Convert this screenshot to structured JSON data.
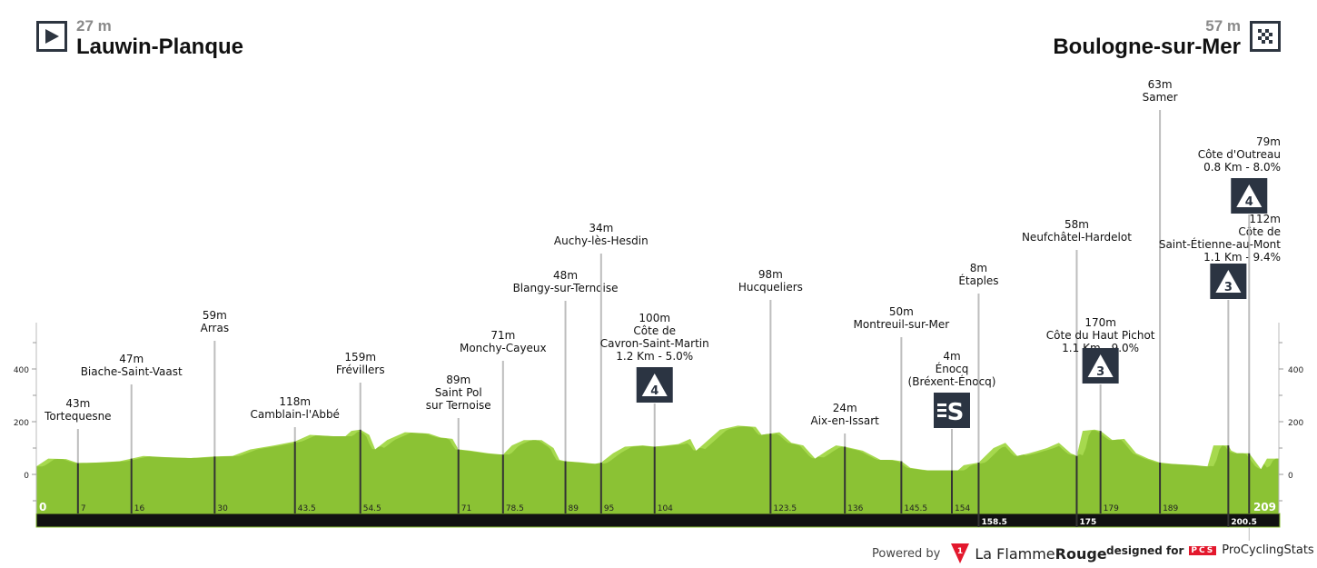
{
  "start": {
    "altitude": "27 m",
    "name": "Lauwin-Planque",
    "icon": "play-icon"
  },
  "finish": {
    "altitude": "57 m",
    "name": "Boulogne-sur-Mer",
    "icon": "checkered-flag-icon"
  },
  "chart_data": {
    "type": "area",
    "xlim": [
      0,
      209
    ],
    "ylim": [
      -150,
      600
    ],
    "y_ticks": [
      "400",
      "200",
      "0"
    ],
    "y_tick_values": [
      400,
      200,
      0
    ],
    "colors": {
      "profile": "#8bc234",
      "profile_light": "#a6d94e",
      "bar": "#111111"
    },
    "profile": [
      [
        0,
        30
      ],
      [
        2,
        60
      ],
      [
        5,
        58
      ],
      [
        7,
        43
      ],
      [
        10,
        45
      ],
      [
        14,
        50
      ],
      [
        16,
        60
      ],
      [
        18,
        70
      ],
      [
        22,
        65
      ],
      [
        26,
        62
      ],
      [
        30,
        68
      ],
      [
        33,
        70
      ],
      [
        36,
        95
      ],
      [
        40,
        110
      ],
      [
        43.5,
        125
      ],
      [
        46,
        150
      ],
      [
        50,
        145
      ],
      [
        52,
        145
      ],
      [
        53,
        165
      ],
      [
        54.5,
        170
      ],
      [
        56,
        150
      ],
      [
        57,
        95
      ],
      [
        59,
        130
      ],
      [
        62,
        160
      ],
      [
        66,
        155
      ],
      [
        68,
        140
      ],
      [
        70,
        135
      ],
      [
        71,
        95
      ],
      [
        73,
        90
      ],
      [
        76,
        80
      ],
      [
        78.5,
        75
      ],
      [
        80,
        110
      ],
      [
        82,
        130
      ],
      [
        85,
        130
      ],
      [
        87,
        100
      ],
      [
        88,
        55
      ],
      [
        89,
        50
      ],
      [
        92,
        45
      ],
      [
        94,
        40
      ],
      [
        95,
        45
      ],
      [
        97,
        80
      ],
      [
        99,
        105
      ],
      [
        102,
        110
      ],
      [
        104,
        105
      ],
      [
        106,
        110
      ],
      [
        108,
        115
      ],
      [
        110,
        135
      ],
      [
        111,
        90
      ],
      [
        113,
        130
      ],
      [
        115,
        170
      ],
      [
        118,
        185
      ],
      [
        121,
        180
      ],
      [
        122,
        150
      ],
      [
        123.5,
        155
      ],
      [
        125,
        160
      ],
      [
        127,
        120
      ],
      [
        129,
        110
      ],
      [
        131,
        60
      ],
      [
        133,
        90
      ],
      [
        134.5,
        110
      ],
      [
        136,
        105
      ],
      [
        139,
        90
      ],
      [
        142,
        55
      ],
      [
        144,
        55
      ],
      [
        145.5,
        50
      ],
      [
        147,
        25
      ],
      [
        150,
        15
      ],
      [
        154,
        15
      ],
      [
        155,
        15
      ],
      [
        156,
        35
      ],
      [
        158.5,
        45
      ],
      [
        161,
        100
      ],
      [
        163,
        120
      ],
      [
        165,
        70
      ],
      [
        167,
        80
      ],
      [
        170,
        100
      ],
      [
        172,
        120
      ],
      [
        174,
        80
      ],
      [
        175,
        70
      ],
      [
        176,
        165
      ],
      [
        178,
        170
      ],
      [
        179,
        165
      ],
      [
        181,
        130
      ],
      [
        183,
        135
      ],
      [
        185,
        80
      ],
      [
        187,
        60
      ],
      [
        189,
        45
      ],
      [
        191,
        40
      ],
      [
        195,
        35
      ],
      [
        197,
        30
      ],
      [
        198,
        110
      ],
      [
        200.5,
        110
      ],
      [
        201,
        90
      ],
      [
        202,
        80
      ],
      [
        204,
        80
      ],
      [
        205,
        50
      ],
      [
        206,
        20
      ],
      [
        207,
        60
      ],
      [
        209,
        60
      ]
    ],
    "km_start_label": "0",
    "km_end_label": "209",
    "waypoints": [
      {
        "km": 7,
        "tick": "7",
        "lines": [
          "43m",
          "Tortequesne"
        ]
      },
      {
        "km": 16,
        "tick": "16",
        "lines": [
          "47m",
          "Biache-Saint-Vaast"
        ]
      },
      {
        "km": 30,
        "tick": "30",
        "lines": [
          "59m",
          "Arras"
        ]
      },
      {
        "km": 43.5,
        "tick": "43.5",
        "lines": [
          "118m",
          "Camblain-l'Abbé"
        ]
      },
      {
        "km": 54.5,
        "tick": "54.5",
        "lines": [
          "159m",
          "Frévillers"
        ]
      },
      {
        "km": 71,
        "tick": "71",
        "lines": [
          "89m",
          "Saint Pol",
          "sur Ternoise"
        ]
      },
      {
        "km": 78.5,
        "tick": "78.5",
        "lines": [
          "71m",
          "Monchy-Cayeux"
        ]
      },
      {
        "km": 89,
        "tick": "89",
        "lines": [
          "48m",
          "Blangy-sur-Ternoise"
        ]
      },
      {
        "km": 95,
        "tick": "95",
        "lines": [
          "34m",
          "Auchy-lès-Hesdin"
        ]
      },
      {
        "km": 104,
        "tick": "104",
        "lines": [
          "100m",
          "Côte de",
          "Cavron-Saint-Martin",
          "1.2 Km - 5.0%"
        ],
        "badge": "4",
        "badge_type": "climb"
      },
      {
        "km": 123.5,
        "tick": "123.5",
        "lines": [
          "98m",
          "Hucqueliers"
        ]
      },
      {
        "km": 136,
        "tick": "136",
        "lines": [
          "24m",
          "Aix-en-Issart"
        ]
      },
      {
        "km": 145.5,
        "tick": "145.5",
        "lines": [
          "50m",
          "Montreuil-sur-Mer"
        ]
      },
      {
        "km": 154,
        "tick": "154",
        "lines": [
          "4m",
          "Énocq",
          "(Bréxent-Énocq)"
        ],
        "badge": "S",
        "badge_type": "sprint"
      },
      {
        "km": 158.5,
        "tick": "158.5",
        "lines": [
          "8m",
          "Étaples"
        ],
        "tick_in_bar": true
      },
      {
        "km": 175,
        "tick": "175",
        "lines": [
          "58m",
          "Neufchâtel-Hardelot"
        ],
        "tick_in_bar": true
      },
      {
        "km": 179,
        "tick": "179",
        "lines": [
          "170m",
          "Côte du Haut Pichot",
          "1.1 Km - 9.0%"
        ],
        "badge": "3",
        "badge_type": "climb"
      },
      {
        "km": 189,
        "tick": "189",
        "lines": [
          "63m",
          "Samer"
        ]
      },
      {
        "km": 200.5,
        "tick": "200.5",
        "lines": [
          "112m",
          "Côte de",
          "Saint-Étienne-au-Mont",
          "1.1 Km - 9.4%"
        ],
        "badge": "3",
        "badge_type": "climb",
        "tick_in_bar": true
      },
      {
        "km": 204,
        "tick": "",
        "lines": [
          "79m",
          "Côte d'Outreau",
          "0.8 Km - 8.0%"
        ],
        "badge": "4",
        "badge_type": "climb"
      }
    ]
  },
  "footer": {
    "powered_by": "Powered by",
    "flamme_a": "La Flamme",
    "flamme_b": "Rouge",
    "designed_for": "designed for",
    "pcs_logo": "PCS",
    "pcs_name": "ProCyclingStats"
  }
}
